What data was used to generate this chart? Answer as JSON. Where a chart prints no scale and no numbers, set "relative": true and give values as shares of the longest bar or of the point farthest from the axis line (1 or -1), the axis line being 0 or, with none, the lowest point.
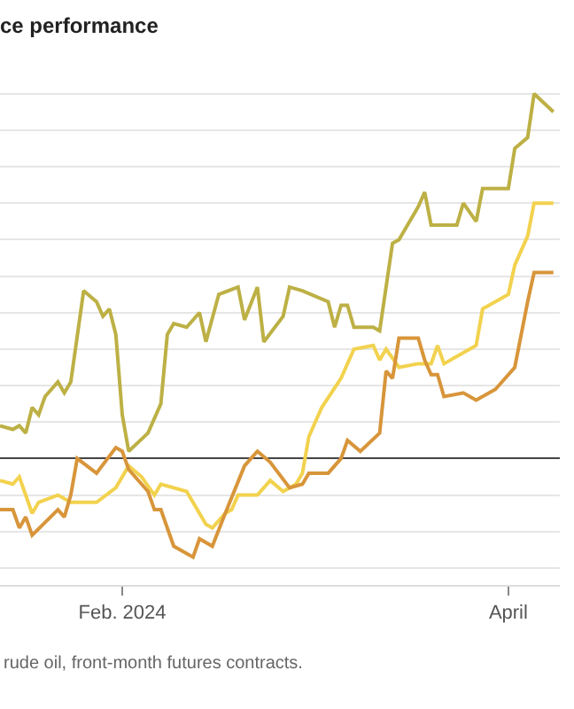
{
  "chart_data": {
    "type": "line",
    "title": "ce performance",
    "relative": true,
    "grid": "y",
    "xlim": [
      "2024-01-13",
      "2024-04-09"
    ],
    "xticks": [
      {
        "value": "2024-02-01",
        "label": "Feb. 2024"
      },
      {
        "value": "2024-04-01",
        "label": "April"
      }
    ],
    "annotations": [
      "rude oil, front-month futures contracts."
    ],
    "series": [
      {
        "color": "#bdb045",
        "x": [
          "2024-01-13",
          "2024-01-15",
          "2024-01-16",
          "2024-01-17",
          "2024-01-18",
          "2024-01-19",
          "2024-01-20",
          "2024-01-22",
          "2024-01-23",
          "2024-01-24",
          "2024-01-26",
          "2024-01-28",
          "2024-01-29",
          "2024-01-30",
          "2024-01-31",
          "2024-02-01",
          "2024-02-02",
          "2024-02-05",
          "2024-02-07",
          "2024-02-08",
          "2024-02-09",
          "2024-02-11",
          "2024-02-13",
          "2024-02-14",
          "2024-02-16",
          "2024-02-19",
          "2024-02-20",
          "2024-02-22",
          "2024-02-23",
          "2024-02-26",
          "2024-02-27",
          "2024-02-29",
          "2024-03-04",
          "2024-03-05",
          "2024-03-06",
          "2024-03-07",
          "2024-03-08",
          "2024-03-11",
          "2024-03-12",
          "2024-03-14",
          "2024-03-15",
          "2024-03-18",
          "2024-03-19",
          "2024-03-20",
          "2024-03-24",
          "2024-03-25",
          "2024-03-27",
          "2024-03-28",
          "2024-04-01",
          "2024-04-02",
          "2024-04-04",
          "2024-04-05",
          "2024-04-08"
        ],
        "values": [
          0.09,
          0.08,
          0.09,
          0.07,
          0.14,
          0.12,
          0.17,
          0.21,
          0.18,
          0.21,
          0.46,
          0.43,
          0.39,
          0.41,
          0.34,
          0.12,
          0.02,
          0.07,
          0.15,
          0.34,
          0.37,
          0.36,
          0.4,
          0.32,
          0.45,
          0.47,
          0.38,
          0.47,
          0.32,
          0.39,
          0.47,
          0.46,
          0.43,
          0.36,
          0.42,
          0.42,
          0.36,
          0.36,
          0.35,
          0.59,
          0.6,
          0.69,
          0.73,
          0.64,
          0.64,
          0.7,
          0.65,
          0.74,
          0.74,
          0.85,
          0.88,
          1.0,
          0.95
        ]
      },
      {
        "color": "#f2d24e",
        "x": [
          "2024-01-13",
          "2024-01-15",
          "2024-01-16",
          "2024-01-18",
          "2024-01-19",
          "2024-01-22",
          "2024-01-24",
          "2024-01-28",
          "2024-01-31",
          "2024-02-02",
          "2024-02-04",
          "2024-02-06",
          "2024-02-07",
          "2024-02-11",
          "2024-02-14",
          "2024-02-15",
          "2024-02-17",
          "2024-02-18",
          "2024-02-19",
          "2024-02-22",
          "2024-02-24",
          "2024-02-26",
          "2024-02-28",
          "2024-02-29",
          "2024-03-01",
          "2024-03-03",
          "2024-03-06",
          "2024-03-08",
          "2024-03-11",
          "2024-03-12",
          "2024-03-13",
          "2024-03-15",
          "2024-03-18",
          "2024-03-20",
          "2024-03-21",
          "2024-03-22",
          "2024-03-25",
          "2024-03-27",
          "2024-03-28",
          "2024-04-01",
          "2024-04-02",
          "2024-04-04",
          "2024-04-05",
          "2024-04-08"
        ],
        "values": [
          -0.06,
          -0.07,
          -0.05,
          -0.15,
          -0.12,
          -0.1,
          -0.12,
          -0.12,
          -0.08,
          -0.02,
          -0.05,
          -0.1,
          -0.07,
          -0.09,
          -0.18,
          -0.19,
          -0.15,
          -0.14,
          -0.1,
          -0.1,
          -0.06,
          -0.09,
          -0.07,
          -0.04,
          0.06,
          0.14,
          0.22,
          0.3,
          0.31,
          0.27,
          0.3,
          0.25,
          0.26,
          0.26,
          0.31,
          0.26,
          0.29,
          0.31,
          0.41,
          0.45,
          0.53,
          0.61,
          0.7,
          0.7
        ]
      },
      {
        "color": "#d8953a",
        "x": [
          "2024-01-13",
          "2024-01-15",
          "2024-01-16",
          "2024-01-17",
          "2024-01-18",
          "2024-01-22",
          "2024-01-23",
          "2024-01-24",
          "2024-01-25",
          "2024-01-28",
          "2024-01-31",
          "2024-02-01",
          "2024-02-02",
          "2024-02-05",
          "2024-02-06",
          "2024-02-07",
          "2024-02-09",
          "2024-02-12",
          "2024-02-13",
          "2024-02-15",
          "2024-02-17",
          "2024-02-20",
          "2024-02-22",
          "2024-02-24",
          "2024-02-27",
          "2024-02-29",
          "2024-03-01",
          "2024-03-04",
          "2024-03-06",
          "2024-03-07",
          "2024-03-09",
          "2024-03-12",
          "2024-03-13",
          "2024-03-14",
          "2024-03-15",
          "2024-03-18",
          "2024-03-19",
          "2024-03-20",
          "2024-03-21",
          "2024-03-22",
          "2024-03-25",
          "2024-03-27",
          "2024-03-30",
          "2024-04-02",
          "2024-04-04",
          "2024-04-05",
          "2024-04-08"
        ],
        "values": [
          -0.14,
          -0.14,
          -0.19,
          -0.16,
          -0.21,
          -0.14,
          -0.16,
          -0.1,
          0.0,
          -0.04,
          0.03,
          0.02,
          -0.03,
          -0.09,
          -0.14,
          -0.14,
          -0.24,
          -0.27,
          -0.22,
          -0.24,
          -0.15,
          -0.02,
          0.02,
          -0.01,
          -0.08,
          -0.07,
          -0.04,
          -0.04,
          0.0,
          0.05,
          0.02,
          0.07,
          0.24,
          0.22,
          0.33,
          0.33,
          0.27,
          0.23,
          0.23,
          0.17,
          0.18,
          0.16,
          0.19,
          0.25,
          0.43,
          0.51,
          0.51
        ]
      }
    ]
  }
}
